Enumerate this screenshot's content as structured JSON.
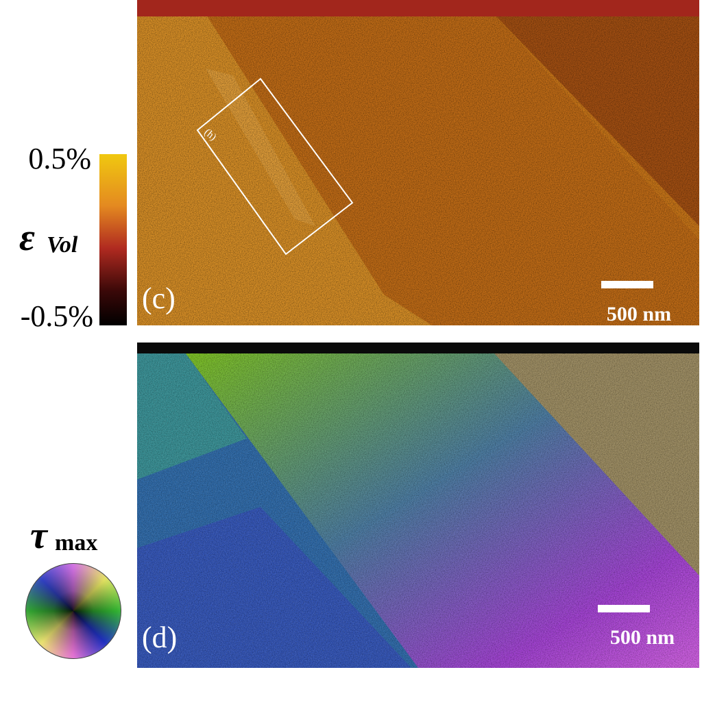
{
  "colorbar": {
    "max_label": "0.5%",
    "min_label": "-0.5%",
    "symbol": "ε",
    "subscript": "Vol"
  },
  "panel_c": {
    "label": "(c)",
    "inset_label": "(h)",
    "scale_bar": "500 nm"
  },
  "panel_d": {
    "label": "(d)",
    "scale_bar": "500 nm"
  },
  "color_wheel": {
    "symbol": "τ",
    "subscript": "max"
  }
}
